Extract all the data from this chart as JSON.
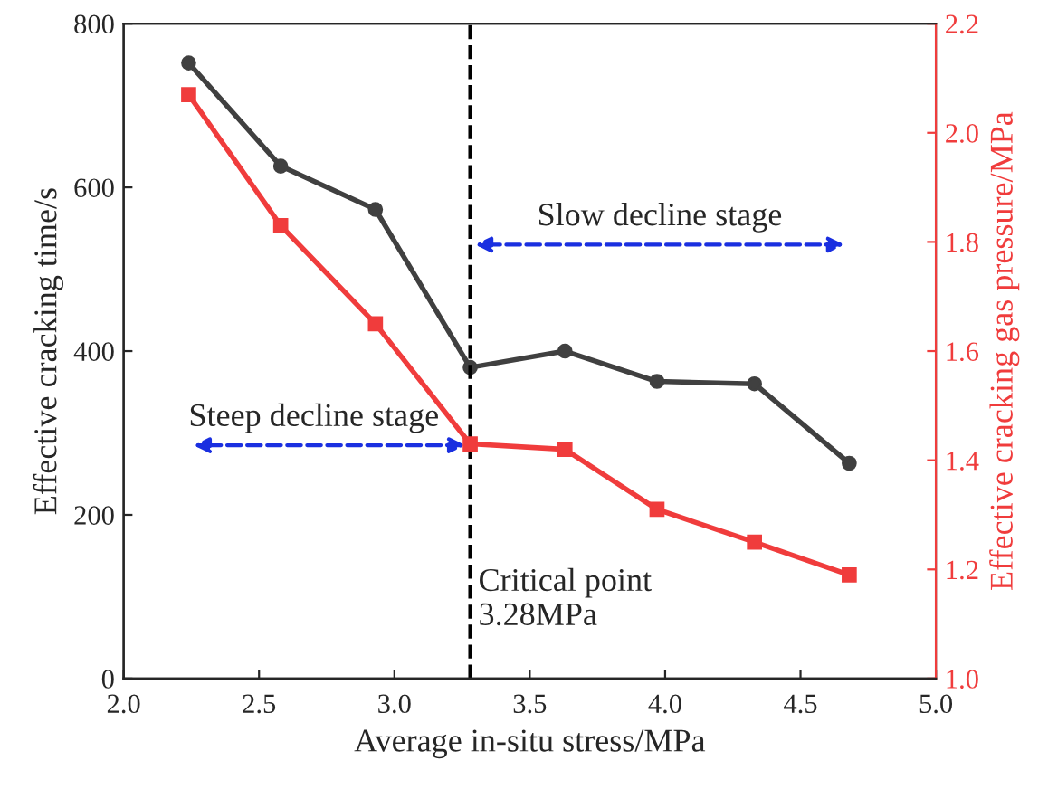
{
  "chart_data": {
    "type": "line",
    "xlabel": "Average in-situ stress/MPa",
    "ylabel": "Effective cracking time/s",
    "y2label": "Effective cracking gas pressure/MPa",
    "x": [
      2.24,
      2.58,
      2.93,
      3.28,
      3.63,
      3.97,
      4.33,
      4.68
    ],
    "series": [
      {
        "color": "#404040",
        "marker": "circle",
        "values": [
          752,
          626,
          573,
          380,
          400,
          363,
          360,
          263
        ]
      },
      {
        "color": "#f03c3c",
        "marker": "square",
        "axis": "y2",
        "values": [
          2.07,
          1.83,
          1.65,
          1.43,
          1.42,
          1.31,
          1.25,
          1.19
        ]
      }
    ],
    "xlim": [
      2.0,
      5.0
    ],
    "xticks": [
      {
        "value": 2.0,
        "label": "2.0"
      },
      {
        "value": 2.5,
        "label": "2.5"
      },
      {
        "value": 3.0,
        "label": "3.0"
      },
      {
        "value": 3.5,
        "label": "3.5"
      },
      {
        "value": 4.0,
        "label": "4.0"
      },
      {
        "value": 4.5,
        "label": "4.5"
      },
      {
        "value": 5.0,
        "label": "5.0"
      }
    ],
    "ylim": [
      0,
      800
    ],
    "yticks": [
      0,
      200,
      400,
      600,
      800
    ],
    "y2lim": [
      1.0,
      2.2
    ],
    "y2ticks": [
      {
        "value": 1.0,
        "label": "1.0"
      },
      {
        "value": 1.2,
        "label": "1.2"
      },
      {
        "value": 1.4,
        "label": "1.4"
      },
      {
        "value": 1.6,
        "label": "1.6"
      },
      {
        "value": 1.8,
        "label": "1.8"
      },
      {
        "value": 2.0,
        "label": "2.0"
      },
      {
        "value": 2.2,
        "label": "2.2"
      }
    ],
    "ref_lines": [
      {
        "axis": "x",
        "value": 3.28,
        "label": "Critical point\n3.28MPa",
        "color": "#000000",
        "line_style": "dashed"
      }
    ],
    "annotations": [
      "Steep decline stage",
      "Slow decline stage"
    ],
    "grid": false,
    "legend": false,
    "line_style": "solid"
  }
}
